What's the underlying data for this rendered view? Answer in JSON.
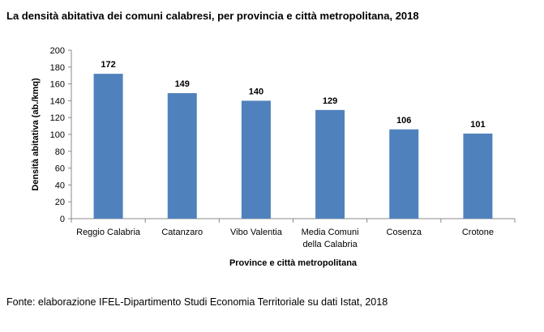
{
  "chart_data": {
    "type": "bar",
    "title": "La densità abitativa dei comuni calabresi, per provincia e città metropolitana, 2018",
    "xlabel": "Province e città metropolitana",
    "ylabel": "Densità abitativa (ab./kmq)",
    "categories": [
      [
        "Reggio Calabria"
      ],
      [
        "Catanzaro"
      ],
      [
        "Vibo Valentia"
      ],
      [
        "Media Comuni",
        "della Calabria"
      ],
      [
        "Cosenza"
      ],
      [
        "Crotone"
      ]
    ],
    "values": [
      172,
      149,
      140,
      129,
      106,
      101
    ],
    "ylim": [
      0,
      200
    ],
    "yticks": [
      0,
      20,
      40,
      60,
      80,
      100,
      120,
      140,
      160,
      180,
      200
    ],
    "bar_color": "#4F81BD",
    "grid": false,
    "legend": "none"
  },
  "source": "Fonte: elaborazione IFEL-Dipartimento Studi Economia Territoriale su dati Istat, 2018"
}
